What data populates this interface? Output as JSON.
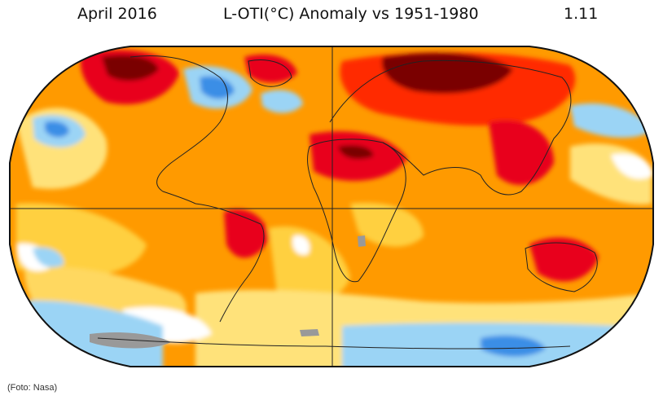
{
  "header": {
    "date": "April 2016",
    "title": "L-OTI(°C) Anomaly vs 1951-1980",
    "global_mean": "1.11"
  },
  "credit": "(Foto: Nasa)",
  "map": {
    "projection": "robinson",
    "colors": {
      "very_hot": "#7a0000",
      "hot": "#e8001c",
      "warm_red": "#ff3300",
      "warm": "#ff8c00",
      "mild": "#ffd040",
      "neutral": "#ffffff",
      "cool": "#9bd4f5",
      "cold": "#3a8ee6",
      "no_data": "#999999",
      "coast": "#222222"
    }
  }
}
